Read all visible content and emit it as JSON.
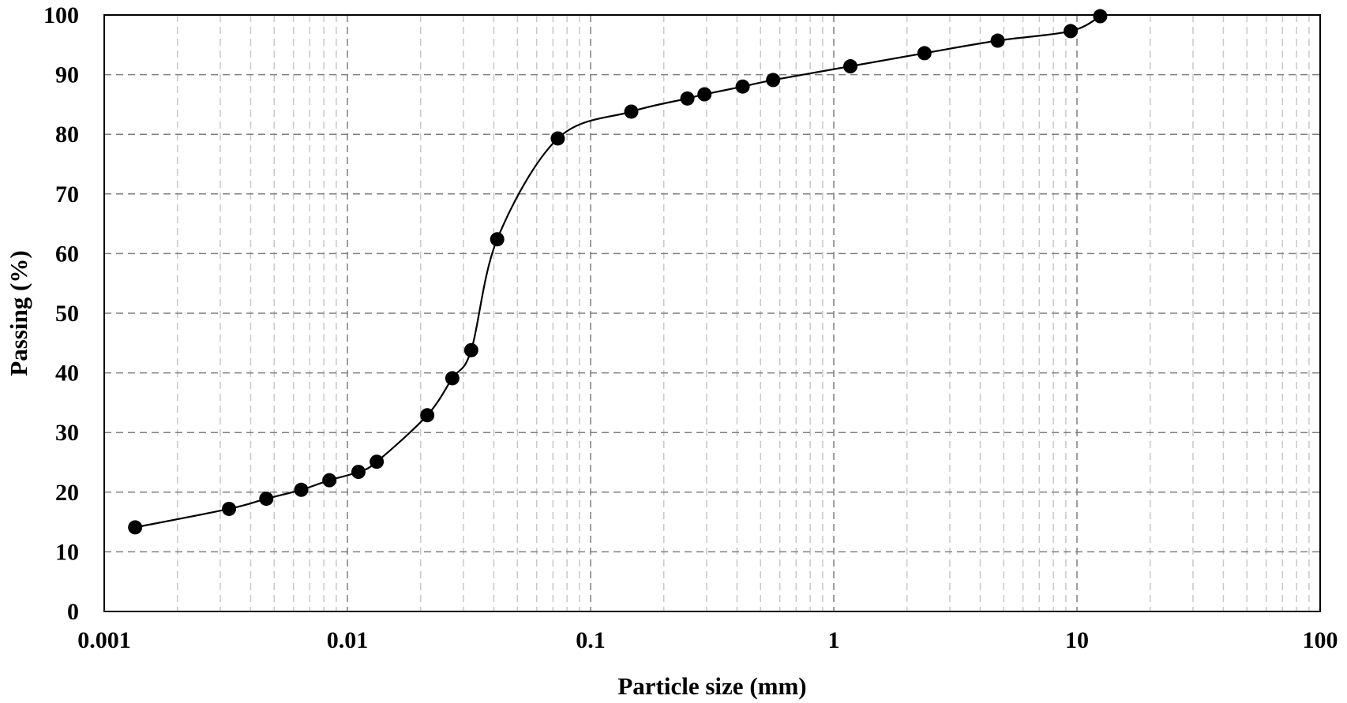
{
  "chart_data": {
    "type": "scatter",
    "title": "",
    "xlabel": "Particle size (mm)",
    "ylabel": "Passing (%)",
    "x_scale": "log",
    "xlim": [
      0.001,
      100
    ],
    "ylim": [
      0,
      100
    ],
    "x_ticks": [
      0.001,
      0.01,
      0.1,
      1,
      10,
      100
    ],
    "x_tick_labels": [
      "0.001",
      "0.01",
      "0.1",
      "1",
      "10",
      "100"
    ],
    "y_ticks": [
      0,
      10,
      20,
      30,
      40,
      50,
      60,
      70,
      80,
      90,
      100
    ],
    "y_tick_labels": [
      "0",
      "10",
      "20",
      "30",
      "40",
      "50",
      "60",
      "70",
      "80",
      "90",
      "100"
    ],
    "grid": true,
    "minor_grid": true,
    "legend": "none",
    "series": [
      {
        "marker": "circle",
        "line": "smooth",
        "color": "#000000",
        "x": [
          0.00134,
          0.00326,
          0.00464,
          0.00646,
          0.00843,
          0.0111,
          0.0132,
          0.0213,
          0.027,
          0.0323,
          0.0413,
          0.0733,
          0.147,
          0.25,
          0.294,
          0.422,
          0.563,
          1.17,
          2.36,
          4.72,
          9.42,
          12.46
        ],
        "y": [
          14.1,
          17.2,
          18.9,
          20.4,
          22.0,
          23.4,
          25.1,
          32.9,
          39.1,
          43.8,
          62.4,
          79.3,
          83.8,
          86.0,
          86.7,
          88.0,
          89.1,
          91.4,
          93.6,
          95.7,
          97.3,
          99.8
        ]
      }
    ]
  }
}
